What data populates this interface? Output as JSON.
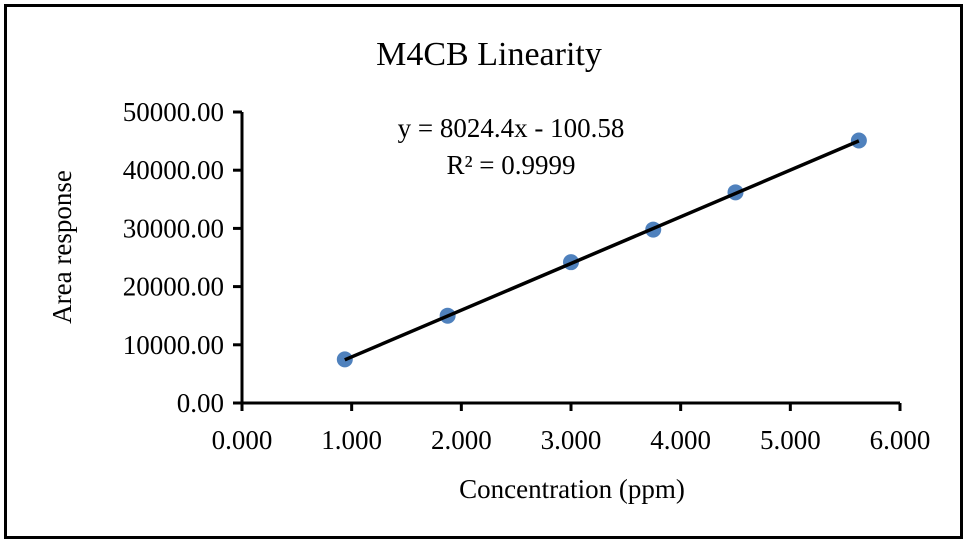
{
  "chart_data": {
    "type": "scatter",
    "title": "M4CB Linearity",
    "xlabel": "Concentration  (ppm)",
    "ylabel": "Area response",
    "xlim": [
      0,
      6
    ],
    "ylim": [
      0,
      50000
    ],
    "x_ticks": [
      0,
      1,
      2,
      3,
      4,
      5,
      6
    ],
    "x_tick_labels": [
      "0.000",
      "1.000",
      "2.000",
      "3.000",
      "4.000",
      "5.000",
      "6.000"
    ],
    "y_ticks": [
      0,
      10000,
      20000,
      30000,
      40000,
      50000
    ],
    "y_tick_labels": [
      "0.00",
      "10000.00",
      "20000.00",
      "30000.00",
      "40000.00",
      "50000.00"
    ],
    "grid": false,
    "series": [
      {
        "name": "M4CB",
        "color": "#4f81bd",
        "x": [
          0.9375,
          1.875,
          3.0,
          3.75,
          4.5,
          5.625
        ],
        "y": [
          7500,
          15000,
          24200,
          29800,
          36200,
          45100
        ]
      }
    ],
    "trendline": {
      "type": "linear",
      "slope": 8024.4,
      "intercept": -100.58,
      "color": "#000000",
      "x_range": [
        0.9375,
        5.625
      ],
      "equation_label": "y = 8024.4x - 100.58",
      "r2_label": "R² = 0.9999"
    }
  }
}
